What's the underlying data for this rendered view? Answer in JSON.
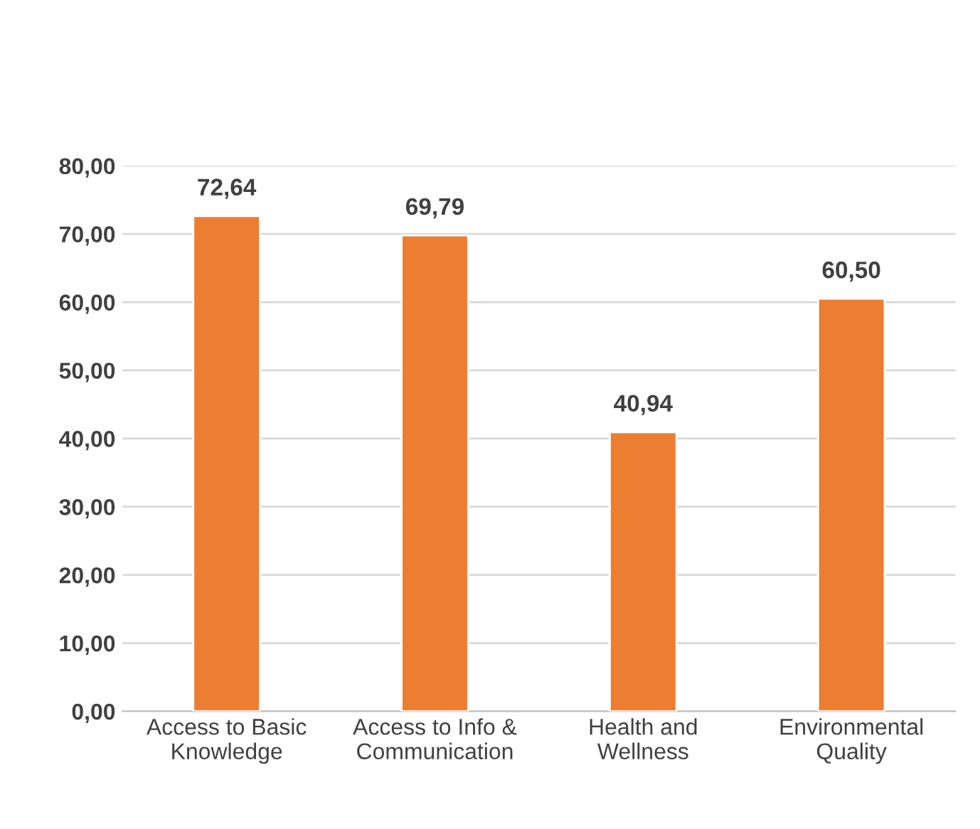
{
  "chart_data": {
    "type": "bar",
    "categories": [
      "Access to Basic\nKnowledge",
      "Access to Info &\nCommunication",
      "Health and\nWellness",
      "Environmental\nQuality"
    ],
    "values": [
      72.64,
      69.79,
      40.94,
      60.5
    ],
    "value_labels": [
      "72,64",
      "69,79",
      "40,94",
      "60,50"
    ],
    "color": "#ed7d31",
    "ylim": [
      0,
      80
    ],
    "yticks": [
      {
        "value": 0,
        "label": "0,00"
      },
      {
        "value": 10,
        "label": "10,00"
      },
      {
        "value": 20,
        "label": "20,00"
      },
      {
        "value": 30,
        "label": "30,00"
      },
      {
        "value": 40,
        "label": "40,00"
      },
      {
        "value": 50,
        "label": "50,00"
      },
      {
        "value": 60,
        "label": "60,00"
      },
      {
        "value": 70,
        "label": "70,00"
      },
      {
        "value": 80,
        "label": "80,00"
      }
    ],
    "grid": "y",
    "legend": false
  }
}
